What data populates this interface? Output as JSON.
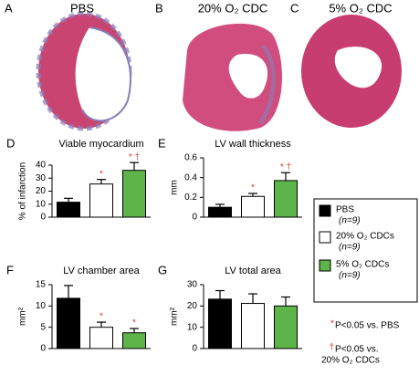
{
  "panels": [
    {
      "letter": "A",
      "title": "PBS"
    },
    {
      "letter": "B",
      "title": "20% O₂ CDC"
    },
    {
      "letter": "C",
      "title": "5% O₂ CDC"
    }
  ],
  "chart_data": [
    {
      "type": "bar",
      "panel": "D",
      "title": "Viable myocardium",
      "ylabel": "% of infarction",
      "values": [
        11.5,
        25.5,
        36
      ],
      "errors": [
        3,
        3.5,
        6
      ],
      "colors": [
        "#000000",
        "#ffffff",
        "#5db549"
      ],
      "annotations": [
        null,
        "*",
        "* †"
      ],
      "ylim": [
        0,
        40
      ],
      "yticks": [
        0,
        10,
        20,
        30,
        40
      ]
    },
    {
      "type": "bar",
      "panel": "E",
      "title": "LV wall thickness",
      "ylabel": "mm",
      "values": [
        0.1,
        0.21,
        0.37
      ],
      "errors": [
        0.03,
        0.03,
        0.08
      ],
      "colors": [
        "#000000",
        "#ffffff",
        "#5db549"
      ],
      "annotations": [
        null,
        "*",
        "* †"
      ],
      "ylim": [
        0,
        0.6
      ],
      "yticks": [
        0,
        0.2,
        0.4,
        0.6
      ]
    },
    {
      "type": "bar",
      "panel": "F",
      "title": "LV chamber area",
      "ylabel": "mm²",
      "values": [
        11.8,
        5,
        3.7
      ],
      "errors": [
        3,
        1.2,
        1
      ],
      "colors": [
        "#000000",
        "#ffffff",
        "#5db549"
      ],
      "annotations": [
        null,
        "*",
        "*"
      ],
      "ylim": [
        0,
        15
      ],
      "yticks": [
        0,
        5,
        10,
        15
      ]
    },
    {
      "type": "bar",
      "panel": "G",
      "title": "LV total area",
      "ylabel": "mm²",
      "values": [
        23.2,
        21.2,
        20
      ],
      "errors": [
        4,
        4.5,
        4.2
      ],
      "colors": [
        "#000000",
        "#ffffff",
        "#5db549"
      ],
      "ylim": [
        0,
        30
      ],
      "yticks": [
        0,
        10,
        20,
        30
      ]
    }
  ],
  "legend": {
    "items": [
      {
        "label": "PBS",
        "n": "(n=9)",
        "color": "#000000"
      },
      {
        "label": "20% O₂ CDCs",
        "n": "(n=9)",
        "color": "#ffffff"
      },
      {
        "label": "5% O₂ CDCs",
        "n": "(n=9)",
        "color": "#5db549"
      }
    ],
    "notes": [
      {
        "symbol": "*",
        "lines": [
          "P<0.05 vs. PBS"
        ]
      },
      {
        "symbol": "†",
        "lines": [
          "P<0.05 vs.",
          "20% O₂ CDCs"
        ]
      }
    ]
  }
}
